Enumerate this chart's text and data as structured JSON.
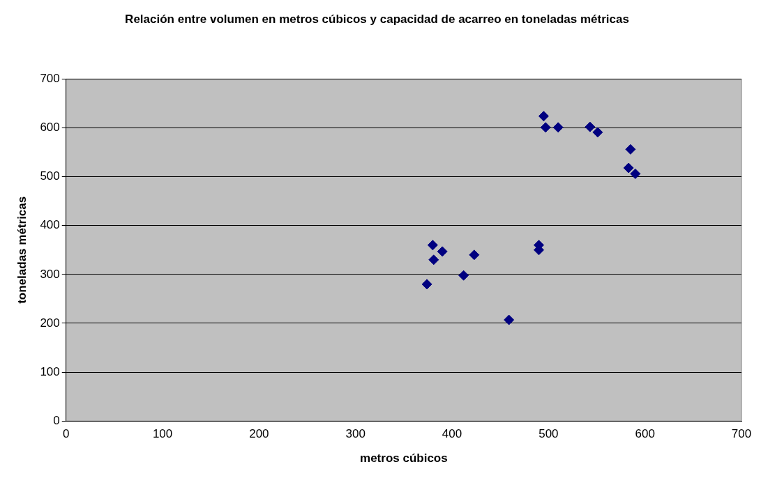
{
  "chart_data": {
    "type": "scatter",
    "title": "Relación entre volumen en metros cúbicos y capacidad de acarreo en toneladas métricas",
    "xlabel": "metros cúbicos",
    "ylabel": "toneladas métricas",
    "x": [
      374,
      380,
      381,
      390,
      412,
      423,
      459,
      490,
      490,
      495,
      497,
      510,
      543,
      551,
      585,
      583,
      590
    ],
    "series": [
      {
        "color": "#000080",
        "values": [
          280,
          360,
          330,
          347,
          298,
          340,
          207,
          360,
          350,
          624,
          601,
          601,
          602,
          591,
          556,
          518,
          506
        ]
      }
    ],
    "xlim": [
      0,
      700
    ],
    "xticks": [
      0,
      100,
      200,
      300,
      400,
      500,
      600,
      700
    ],
    "ylim": [
      0,
      700
    ],
    "yticks": [
      0,
      100,
      200,
      300,
      400,
      500,
      600,
      700
    ],
    "grid": "y",
    "marker": "diamond",
    "legend": false
  }
}
